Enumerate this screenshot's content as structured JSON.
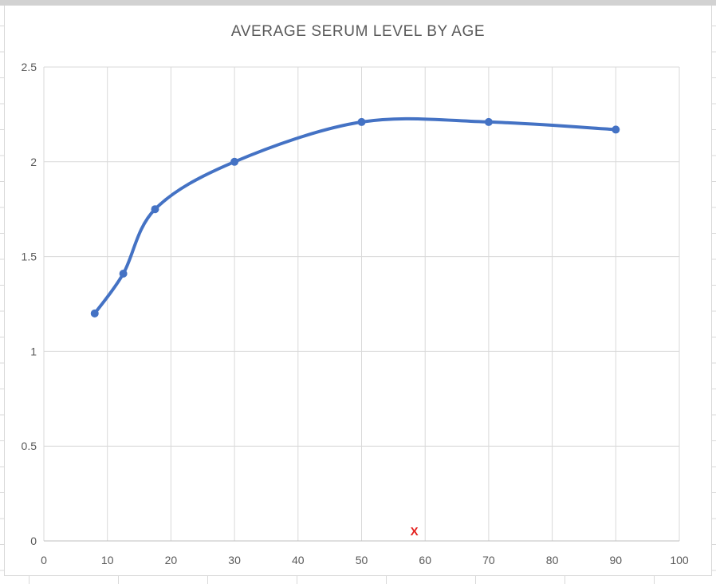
{
  "chart_data": {
    "type": "scatter",
    "title": "AVERAGE SERUM LEVEL BY AGE",
    "xlabel": "",
    "ylabel": "",
    "xlim": [
      0,
      100
    ],
    "ylim": [
      0,
      2.5
    ],
    "x_ticks": [
      0,
      10,
      20,
      30,
      40,
      50,
      60,
      70,
      80,
      90,
      100
    ],
    "y_ticks": [
      0,
      0.5,
      1,
      1.5,
      2,
      2.5
    ],
    "grid": true,
    "legend": false,
    "line_style": "smooth",
    "series": [
      {
        "name": "AVERAGE SERUM LEVEL BY AGE",
        "points": [
          [
            8,
            1.2
          ],
          [
            12.5,
            1.41
          ],
          [
            17.5,
            1.75
          ],
          [
            30,
            2.0
          ],
          [
            50,
            2.21
          ],
          [
            70,
            2.21
          ],
          [
            90,
            2.17
          ]
        ]
      }
    ],
    "annotation": {
      "text": "X",
      "x": 58.3,
      "y": 0.05
    },
    "colors": {
      "line": "#4472c4",
      "marker": "#4472c4",
      "grid": "#d9d9d9",
      "axis_line": "#bfbfbf",
      "tick_label": "#595959",
      "title": "#595959",
      "annotation": "#e42320",
      "spreadsheet_grid": "#d9d9d9",
      "top_band": "#d2d2d2"
    }
  }
}
